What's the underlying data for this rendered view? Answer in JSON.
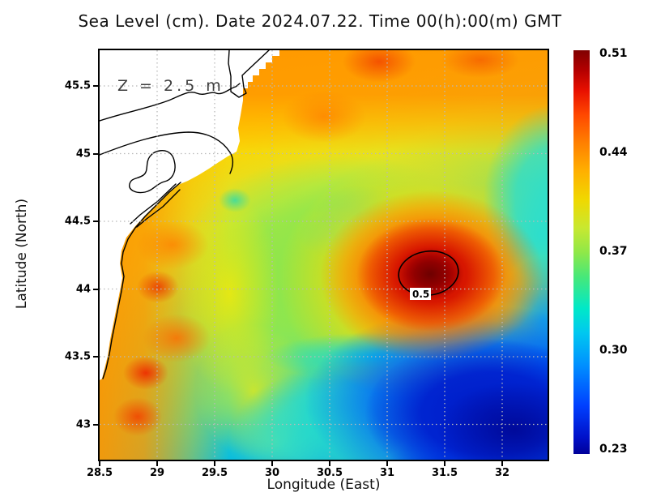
{
  "title": "Sea Level (cm). Date 2024.07.22. Time 00(h):00(m) GMT",
  "annotation": {
    "depth_label": "Z = 2.5 m"
  },
  "contour": {
    "level_label": "0.5"
  },
  "axes": {
    "x": {
      "label": "Longitude (East)",
      "ticks": [
        "28.5",
        "29",
        "29.5",
        "30",
        "30.5",
        "31",
        "31.5",
        "32"
      ],
      "tick_values": [
        28.5,
        29,
        29.5,
        30,
        30.5,
        31,
        31.5,
        32
      ],
      "range": [
        28.5,
        32.39
      ]
    },
    "y": {
      "label": "Latitude (North)",
      "ticks": [
        "45.5",
        "45",
        "44.5",
        "44",
        "43.5",
        "43"
      ],
      "tick_values": [
        45.5,
        45,
        44.5,
        44,
        43.5,
        43
      ],
      "range": [
        42.74,
        45.76
      ]
    }
  },
  "colorbar": {
    "tick_labels": [
      "0.51",
      "0.44",
      "0.37",
      "0.30",
      "0.23"
    ],
    "min": 0.23,
    "max": 0.51,
    "colors": [
      "#000099",
      "#0040ff",
      "#00b0ff",
      "#00e8c8",
      "#7ce84a",
      "#d8e830",
      "#ffd800",
      "#ff8c00",
      "#ff3c00",
      "#c80000",
      "#7f0000"
    ]
  },
  "chart_data": {
    "type": "heatmap",
    "title": "Sea Level (cm). Date 2024.07.22. Time 00(h):00(m) GMT",
    "xlabel": "Longitude (East)",
    "ylabel": "Latitude (North)",
    "xlim": [
      28.5,
      32.39
    ],
    "ylim": [
      42.74,
      45.76
    ],
    "grid": true,
    "colormap": "jet",
    "colorbar_range": [
      0.23,
      0.51
    ],
    "contour_levels": [
      0.5
    ],
    "land_mask": "white land with black coastline along western edge (NW Black Sea coast, Danube delta region)",
    "features": [
      {
        "lon": 31.4,
        "lat": 44.15,
        "value": 0.51,
        "note": "field maximum, enclosed by 0.5 contour"
      },
      {
        "lon": 32.25,
        "lat": 42.85,
        "value": 0.23,
        "note": "field minimum, deep blue bottom-right corner"
      },
      {
        "lon": 30.9,
        "lat": 45.7,
        "value": 0.45,
        "note": "orange-red band along northern edge"
      },
      {
        "lon": 29.9,
        "lat": 45.7,
        "value": 0.44,
        "note": "orange band north"
      },
      {
        "lon": 28.9,
        "lat": 43.4,
        "value": 0.47,
        "note": "coastal red maximum"
      },
      {
        "lon": 28.9,
        "lat": 43.1,
        "value": 0.46,
        "note": "coastal red maximum"
      },
      {
        "lon": 29.0,
        "lat": 43.75,
        "value": 0.46,
        "note": "coastal red spot"
      },
      {
        "lon": 28.9,
        "lat": 44.35,
        "value": 0.45,
        "note": "coastal orange-red"
      },
      {
        "lon": 29.7,
        "lat": 44.65,
        "value": 0.36,
        "note": "small green-cyan spot near coast"
      },
      {
        "lon": 30.6,
        "lat": 44.6,
        "value": 0.37,
        "note": "green mid-basin band"
      },
      {
        "lon": 32.3,
        "lat": 44.9,
        "value": 0.33,
        "note": "cyan patch along right edge"
      },
      {
        "lon": 30.6,
        "lat": 43.0,
        "value": 0.31,
        "note": "cyan bottom-center"
      },
      {
        "lon": 31.8,
        "lat": 43.2,
        "value": 0.25,
        "note": "deep blue region"
      }
    ]
  }
}
